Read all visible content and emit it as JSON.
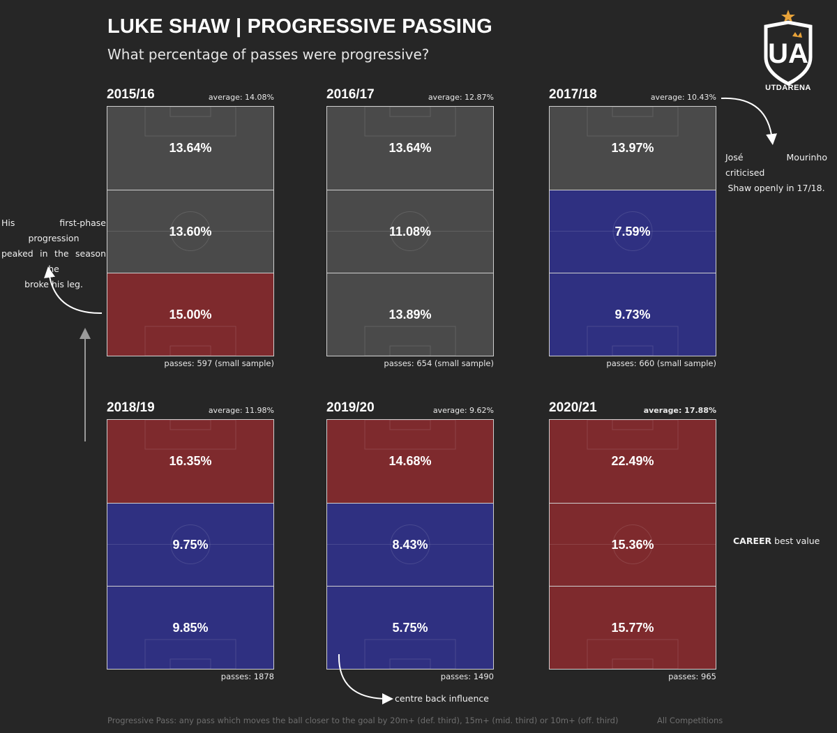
{
  "header": {
    "title": "LUKE SHAW | PROGRESSIVE PASSING",
    "subtitle": "What percentage of passes were progressive?"
  },
  "logo": {
    "name": "UTDARENA"
  },
  "colors": {
    "background": "#262626",
    "neutral": "#4a4a4a",
    "above_average": "#7e2a2d",
    "below_average": "#2f3081",
    "line": "#d0d0d0"
  },
  "chart_data": {
    "type": "heatmap",
    "title": "LUKE SHAW | PROGRESSIVE PASSING",
    "zones_order": [
      "off. third",
      "mid. third",
      "def. third"
    ],
    "panels": [
      {
        "season": "2015/16",
        "average": "average: 14.08%",
        "passes": "passes: 597 (small sample)",
        "values": [
          13.64,
          13.6,
          15.0
        ],
        "labels": [
          "13.64%",
          "13.60%",
          "15.00%"
        ],
        "status": [
          "neutral",
          "neutral",
          "above"
        ]
      },
      {
        "season": "2016/17",
        "average": "average: 12.87%",
        "passes": "passes: 654 (small sample)",
        "values": [
          13.64,
          11.08,
          13.89
        ],
        "labels": [
          "13.64%",
          "11.08%",
          "13.89%"
        ],
        "status": [
          "neutral",
          "neutral",
          "neutral"
        ]
      },
      {
        "season": "2017/18",
        "average": "average: 10.43%",
        "passes": "passes: 660 (small sample)",
        "values": [
          13.97,
          7.59,
          9.73
        ],
        "labels": [
          "13.97%",
          "7.59%",
          "9.73%"
        ],
        "status": [
          "neutral",
          "below",
          "below"
        ]
      },
      {
        "season": "2018/19",
        "average": "average: 11.98%",
        "passes": "passes: 1878",
        "values": [
          16.35,
          9.75,
          9.85
        ],
        "labels": [
          "16.35%",
          "9.75%",
          "9.85%"
        ],
        "status": [
          "above",
          "below",
          "below"
        ]
      },
      {
        "season": "2019/20",
        "average": "average: 9.62%",
        "passes": "passes: 1490",
        "values": [
          14.68,
          8.43,
          5.75
        ],
        "labels": [
          "14.68%",
          "8.43%",
          "5.75%"
        ],
        "status": [
          "above",
          "below",
          "below"
        ]
      },
      {
        "season": "2020/21",
        "average": "average: 17.88%",
        "passes": "passes: 965",
        "values": [
          22.49,
          15.36,
          15.77
        ],
        "labels": [
          "22.49%",
          "15.36%",
          "15.77%"
        ],
        "status": [
          "above",
          "above",
          "above"
        ]
      }
    ]
  },
  "annotations": {
    "first_phase": [
      "His first-phase progression",
      "peaked in the season he",
      "broke his leg."
    ],
    "mourinho": [
      "José  Mourinho  criticised",
      "Shaw openly in 17/18."
    ],
    "career_best_bold": "CAREER",
    "career_best_rest": " best value",
    "centre_back": "centre back influence"
  },
  "footer": {
    "definition": "Progressive Pass: any pass which moves the ball closer to the goal by 20m+ (def. third), 15m+ (mid. third) or 10m+ (off. third)",
    "scope": "All Competitions"
  }
}
